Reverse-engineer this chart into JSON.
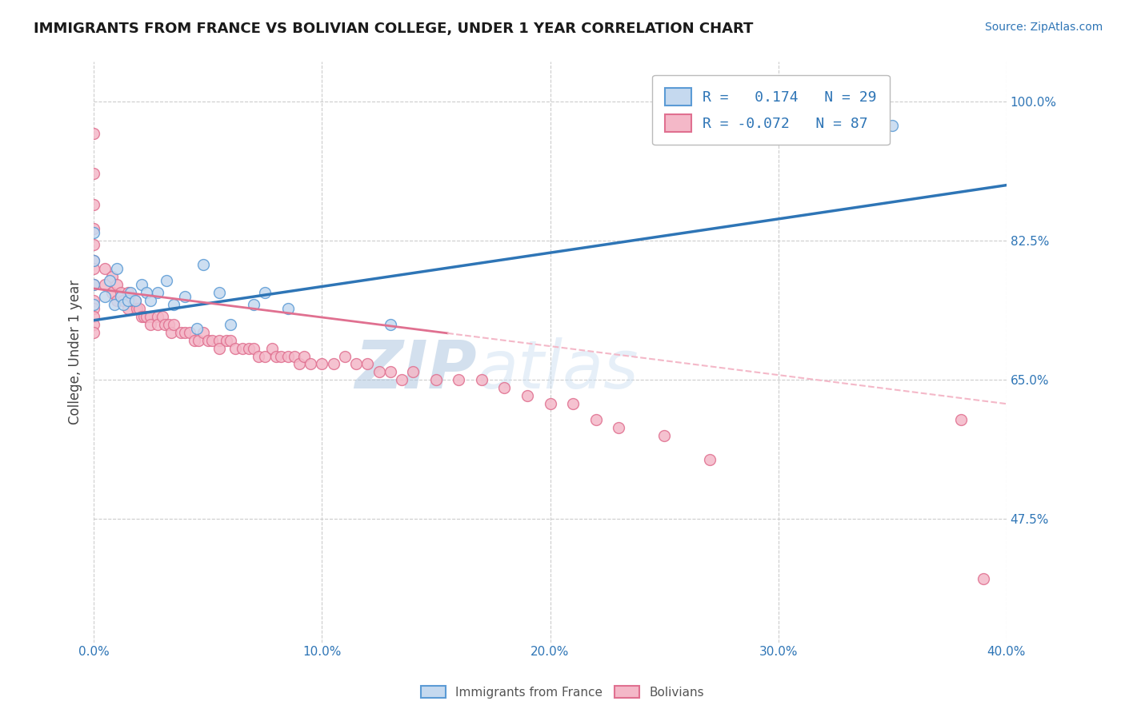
{
  "title": "IMMIGRANTS FROM FRANCE VS BOLIVIAN COLLEGE, UNDER 1 YEAR CORRELATION CHART",
  "source_text": "Source: ZipAtlas.com",
  "xlabel": "",
  "ylabel": "College, Under 1 year",
  "xlim": [
    0.0,
    0.4
  ],
  "ylim": [
    0.32,
    1.05
  ],
  "xtick_labels": [
    "0.0%",
    "10.0%",
    "20.0%",
    "30.0%",
    "40.0%"
  ],
  "xtick_vals": [
    0.0,
    0.1,
    0.2,
    0.3,
    0.4
  ],
  "ytick_right_labels": [
    "100.0%",
    "82.5%",
    "65.0%",
    "47.5%"
  ],
  "ytick_right_vals": [
    1.0,
    0.825,
    0.65,
    0.475
  ],
  "grid_color": "#cccccc",
  "background_color": "#ffffff",
  "legend_R1": "0.174",
  "legend_N1": "29",
  "legend_R2": "-0.072",
  "legend_N2": "87",
  "series1_color": "#c5d9ef",
  "series1_edge_color": "#5b9bd5",
  "series2_color": "#f4b8c8",
  "series2_edge_color": "#e07090",
  "trendline1_color": "#2e75b6",
  "trendline2_color": "#e07090",
  "trendline2_dash_color": "#f4b8c8",
  "watermark": "ZIPatlas",
  "france_x": [
    0.0,
    0.0,
    0.0,
    0.0,
    0.005,
    0.007,
    0.009,
    0.01,
    0.012,
    0.013,
    0.015,
    0.016,
    0.018,
    0.021,
    0.023,
    0.025,
    0.028,
    0.032,
    0.035,
    0.04,
    0.045,
    0.048,
    0.055,
    0.06,
    0.07,
    0.075,
    0.085,
    0.13,
    0.35
  ],
  "france_y": [
    0.745,
    0.77,
    0.8,
    0.835,
    0.755,
    0.775,
    0.745,
    0.79,
    0.755,
    0.745,
    0.75,
    0.76,
    0.75,
    0.77,
    0.76,
    0.75,
    0.76,
    0.775,
    0.745,
    0.755,
    0.715,
    0.795,
    0.76,
    0.72,
    0.745,
    0.76,
    0.74,
    0.72,
    0.97
  ],
  "bolivia_x": [
    0.0,
    0.0,
    0.0,
    0.0,
    0.0,
    0.0,
    0.0,
    0.0,
    0.0,
    0.0,
    0.0,
    0.0,
    0.0,
    0.005,
    0.005,
    0.008,
    0.008,
    0.01,
    0.01,
    0.012,
    0.013,
    0.015,
    0.015,
    0.016,
    0.018,
    0.019,
    0.02,
    0.021,
    0.022,
    0.023,
    0.025,
    0.025,
    0.028,
    0.028,
    0.03,
    0.031,
    0.033,
    0.034,
    0.035,
    0.038,
    0.04,
    0.042,
    0.044,
    0.046,
    0.048,
    0.05,
    0.052,
    0.055,
    0.055,
    0.058,
    0.06,
    0.062,
    0.065,
    0.068,
    0.07,
    0.072,
    0.075,
    0.078,
    0.08,
    0.082,
    0.085,
    0.088,
    0.09,
    0.092,
    0.095,
    0.1,
    0.105,
    0.11,
    0.115,
    0.12,
    0.125,
    0.13,
    0.135,
    0.14,
    0.15,
    0.16,
    0.17,
    0.18,
    0.19,
    0.2,
    0.21,
    0.22,
    0.23,
    0.25,
    0.27,
    0.38,
    0.39
  ],
  "bolivia_y": [
    0.96,
    0.91,
    0.87,
    0.84,
    0.82,
    0.8,
    0.79,
    0.77,
    0.75,
    0.74,
    0.73,
    0.72,
    0.71,
    0.79,
    0.77,
    0.78,
    0.76,
    0.77,
    0.75,
    0.76,
    0.75,
    0.76,
    0.74,
    0.75,
    0.75,
    0.74,
    0.74,
    0.73,
    0.73,
    0.73,
    0.73,
    0.72,
    0.73,
    0.72,
    0.73,
    0.72,
    0.72,
    0.71,
    0.72,
    0.71,
    0.71,
    0.71,
    0.7,
    0.7,
    0.71,
    0.7,
    0.7,
    0.7,
    0.69,
    0.7,
    0.7,
    0.69,
    0.69,
    0.69,
    0.69,
    0.68,
    0.68,
    0.69,
    0.68,
    0.68,
    0.68,
    0.68,
    0.67,
    0.68,
    0.67,
    0.67,
    0.67,
    0.68,
    0.67,
    0.67,
    0.66,
    0.66,
    0.65,
    0.66,
    0.65,
    0.65,
    0.65,
    0.64,
    0.63,
    0.62,
    0.62,
    0.6,
    0.59,
    0.58,
    0.55,
    0.6,
    0.4
  ],
  "trendline1_x0": 0.0,
  "trendline1_x1": 0.4,
  "trendline1_y0": 0.725,
  "trendline1_y1": 0.895,
  "trendline2_x0": 0.0,
  "trendline2_x1": 0.4,
  "trendline2_y0": 0.765,
  "trendline2_y1": 0.62,
  "trendline2_solid_x1": 0.155
}
